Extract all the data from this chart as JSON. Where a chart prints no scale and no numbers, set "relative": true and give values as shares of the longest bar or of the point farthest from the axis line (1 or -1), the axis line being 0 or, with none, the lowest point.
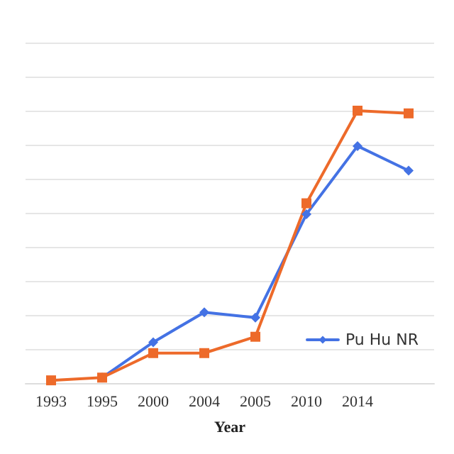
{
  "chart_data": {
    "type": "line",
    "xlabel": "Year",
    "relative": true,
    "grid": "y",
    "legend": "bottom right",
    "line_style": "solid",
    "categories": [
      "1993",
      "1995",
      "2000",
      "2004",
      "2005",
      "2010",
      "2014",
      null
    ],
    "series": [
      {
        "name": "Pu Hu NR",
        "color": "#4472e4",
        "marker": "diamond",
        "values": [
          null,
          0.02,
          0.15,
          0.26,
          0.24,
          0.62,
          0.87,
          0.78
        ]
      },
      {
        "color": "#ed6a2a",
        "marker": "square",
        "values": [
          0.01,
          0.02,
          0.11,
          0.11,
          0.17,
          0.66,
          1,
          0.99
        ]
      }
    ]
  }
}
